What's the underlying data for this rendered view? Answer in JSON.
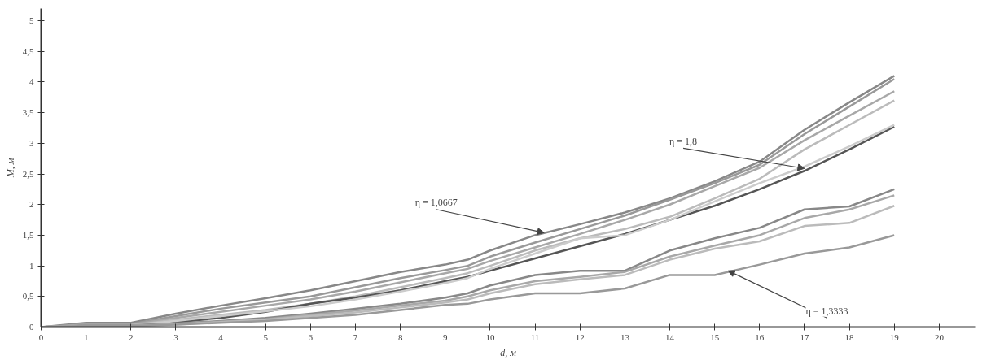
{
  "chart_data": {
    "type": "line",
    "xlabel": "d, м",
    "ylabel": "M, м",
    "x": [
      0,
      1,
      2,
      3,
      4,
      5,
      6,
      7,
      8,
      9,
      9.5,
      10,
      11,
      12,
      13,
      14,
      15,
      16,
      17,
      18,
      19
    ],
    "series": [
      {
        "color": "#888888",
        "values": [
          0,
          0.07,
          0.07,
          0.22,
          0.35,
          0.47,
          0.6,
          0.75,
          0.9,
          1.02,
          1.1,
          1.25,
          1.5,
          1.68,
          1.87,
          2.1,
          2.38,
          2.7,
          3.22,
          3.67,
          4.1
        ]
      },
      {
        "color": "#999999",
        "values": [
          0,
          0.05,
          0.05,
          0.18,
          0.3,
          0.4,
          0.5,
          0.65,
          0.8,
          0.93,
          1.0,
          1.15,
          1.38,
          1.6,
          1.82,
          2.08,
          2.35,
          2.65,
          3.15,
          3.6,
          4.05
        ]
      },
      {
        "color": "#a8a8a8",
        "values": [
          0,
          0.04,
          0.04,
          0.15,
          0.25,
          0.35,
          0.45,
          0.58,
          0.73,
          0.88,
          0.95,
          1.08,
          1.3,
          1.52,
          1.75,
          2.0,
          2.3,
          2.6,
          3.05,
          3.45,
          3.85
        ]
      },
      {
        "color": "#bbbbbb",
        "values": [
          0,
          0.03,
          0.03,
          0.12,
          0.2,
          0.28,
          0.38,
          0.5,
          0.65,
          0.8,
          0.88,
          1.0,
          1.25,
          1.45,
          1.6,
          1.8,
          2.1,
          2.42,
          2.9,
          3.3,
          3.7
        ]
      },
      {
        "color": "#555555",
        "values": [
          0,
          0.02,
          0.02,
          0.08,
          0.15,
          0.25,
          0.38,
          0.48,
          0.6,
          0.75,
          0.82,
          0.92,
          1.12,
          1.32,
          1.52,
          1.75,
          1.98,
          2.25,
          2.55,
          2.9,
          3.27
        ]
      },
      {
        "color": "#cccccc",
        "values": [
          0,
          0.03,
          0.03,
          0.1,
          0.18,
          0.26,
          0.34,
          0.45,
          0.58,
          0.72,
          0.8,
          0.95,
          1.2,
          1.45,
          1.5,
          1.75,
          2.05,
          2.35,
          2.62,
          2.95,
          3.3
        ]
      },
      {
        "color": "#888888",
        "values": [
          0,
          0.03,
          0.03,
          0.06,
          0.1,
          0.15,
          0.22,
          0.3,
          0.38,
          0.48,
          0.55,
          0.68,
          0.85,
          0.92,
          0.92,
          1.25,
          1.45,
          1.62,
          1.92,
          1.97,
          2.25
        ]
      },
      {
        "color": "#a8a8a8",
        "values": [
          0,
          0.02,
          0.02,
          0.05,
          0.09,
          0.13,
          0.2,
          0.27,
          0.35,
          0.43,
          0.5,
          0.6,
          0.75,
          0.82,
          0.9,
          1.15,
          1.33,
          1.5,
          1.78,
          1.92,
          2.15
        ]
      },
      {
        "color": "#bbbbbb",
        "values": [
          0,
          0.02,
          0.02,
          0.04,
          0.08,
          0.12,
          0.18,
          0.24,
          0.32,
          0.4,
          0.45,
          0.55,
          0.7,
          0.78,
          0.85,
          1.1,
          1.28,
          1.4,
          1.65,
          1.7,
          1.98
        ]
      },
      {
        "color": "#999999",
        "values": [
          0,
          0.02,
          0.02,
          0.04,
          0.07,
          0.1,
          0.15,
          0.2,
          0.28,
          0.36,
          0.38,
          0.45,
          0.55,
          0.55,
          0.63,
          0.85,
          0.85,
          1.02,
          1.2,
          1.3,
          1.5
        ]
      }
    ],
    "annotations": [
      {
        "text": "η = 1,0667",
        "x": 11.2,
        "y": 1.54
      },
      {
        "text": "η = 1,8",
        "x": 17.0,
        "y": 2.59
      },
      {
        "text": "η = 1,3333",
        "x": 15.3,
        "y": 0.92
      }
    ],
    "xlim": [
      0,
      20.8
    ],
    "ylim": [
      0,
      5.2
    ],
    "xticks": [
      0,
      1,
      2,
      3,
      4,
      5,
      6,
      7,
      8,
      9,
      10,
      11,
      12,
      13,
      14,
      15,
      16,
      17,
      18,
      19,
      20
    ],
    "yticks": [
      0,
      {
        "value": 0.5,
        "label": "0,5"
      },
      1,
      {
        "value": 1.5,
        "label": "1,5"
      },
      2,
      {
        "value": 2.5,
        "label": "2,5"
      },
      3,
      {
        "value": 3.5,
        "label": "3,5"
      },
      4,
      {
        "value": 4.5,
        "label": "4,5"
      },
      5
    ],
    "grid": false
  }
}
